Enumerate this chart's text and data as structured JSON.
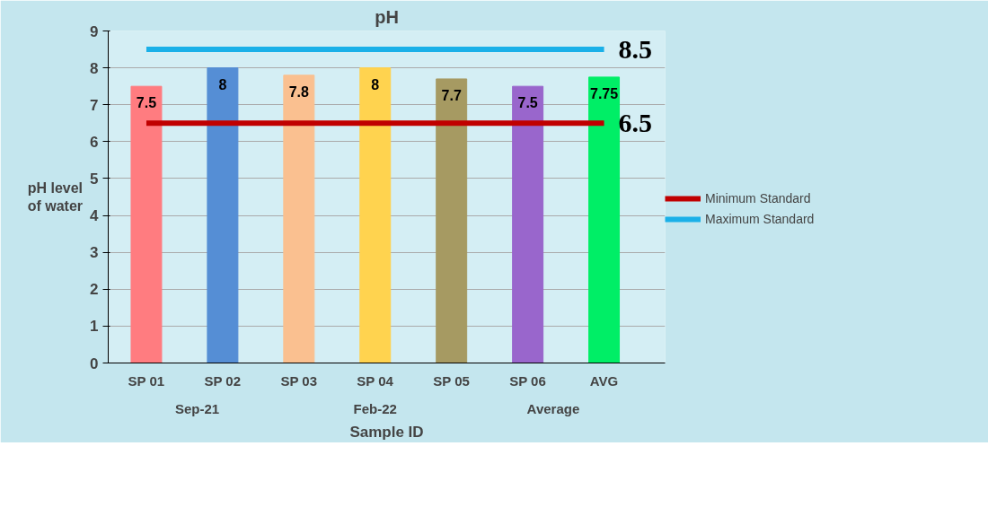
{
  "chart_data": {
    "type": "bar",
    "title": "pH",
    "xlabel": "Sample ID",
    "ylabel": "pH level of water",
    "categories": [
      "SP 01",
      "SP 02",
      "SP 03",
      "SP 04",
      "SP 05",
      "SP 06",
      "AVG"
    ],
    "series": [
      {
        "colors": [
          "#ff7c80",
          "#558ed5",
          "#fac090",
          "#ffd34f",
          "#a69a62",
          "#9966cc",
          "#00ee66"
        ],
        "values": [
          7.5,
          8,
          7.8,
          8,
          7.7,
          7.5,
          7.75
        ],
        "value_labels": [
          "7.5",
          "8",
          "7.8",
          "8",
          "7.7",
          "7.5",
          "7.75"
        ]
      },
      {
        "type": "line",
        "name": "Minimum Standard",
        "color": "#c00000",
        "values": [
          6.5,
          6.5,
          6.5,
          6.5,
          6.5,
          6.5,
          6.5
        ],
        "value_labels": [
          null,
          null,
          null,
          null,
          null,
          null,
          "6.5"
        ]
      },
      {
        "type": "line",
        "name": "Maximum Standard",
        "color": "#1ab0e8",
        "values": [
          8.5,
          8.5,
          8.5,
          8.5,
          8.5,
          8.5,
          8.5
        ],
        "value_labels": [
          null,
          null,
          null,
          null,
          null,
          null,
          "8.5"
        ]
      }
    ],
    "annotations": [
      "Sep-21",
      "Feb-22",
      "Average"
    ],
    "ylim": [
      0,
      9
    ],
    "yticks": [
      0,
      1,
      2,
      3,
      4,
      5,
      6,
      7,
      8,
      9
    ],
    "grid": "y",
    "legend": "right"
  }
}
